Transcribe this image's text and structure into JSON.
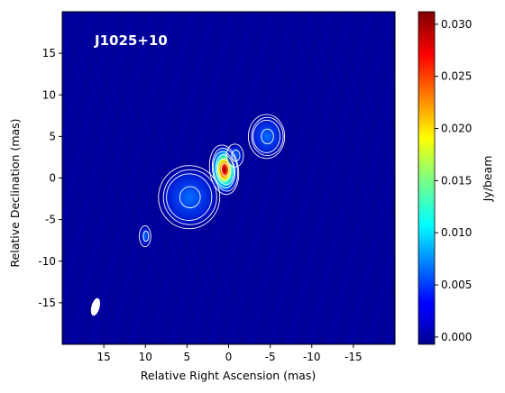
{
  "chart_data": {
    "type": "heatmap",
    "title": "J1025+10",
    "xlabel": "Relative Right Ascension (mas)",
    "ylabel": "Relative Declination (mas)",
    "colorbar_label": "Jy/beam",
    "xlim": [
      20,
      -20
    ],
    "ylim": [
      -20,
      20
    ],
    "x_ticks": [
      "15",
      "10",
      "5",
      "0",
      "-5",
      "-10",
      "-15"
    ],
    "y_ticks": [
      "15",
      "10",
      "5",
      "0",
      "-5",
      "-10",
      "-15"
    ],
    "colorbar_range": [
      -0.0007,
      0.0312
    ],
    "colorbar_ticks": [
      "0.000",
      "0.005",
      "0.010",
      "0.015",
      "0.020",
      "0.025",
      "0.030"
    ],
    "colormap": "jet",
    "background_color": "#00009a",
    "components": [
      {
        "ra": 0.5,
        "dec": 1.0,
        "peak": 0.031
      },
      {
        "ra": -0.8,
        "dec": 2.7,
        "peak": 0.004
      },
      {
        "ra": 4.7,
        "dec": -2.3,
        "peak": 0.0045
      },
      {
        "ra": -4.6,
        "dec": 5.0,
        "peak": 0.005
      },
      {
        "ra": 10.0,
        "dec": -7.0,
        "peak": 0.0015
      }
    ],
    "beam": {
      "ra": 16.0,
      "dec": -15.5
    }
  }
}
